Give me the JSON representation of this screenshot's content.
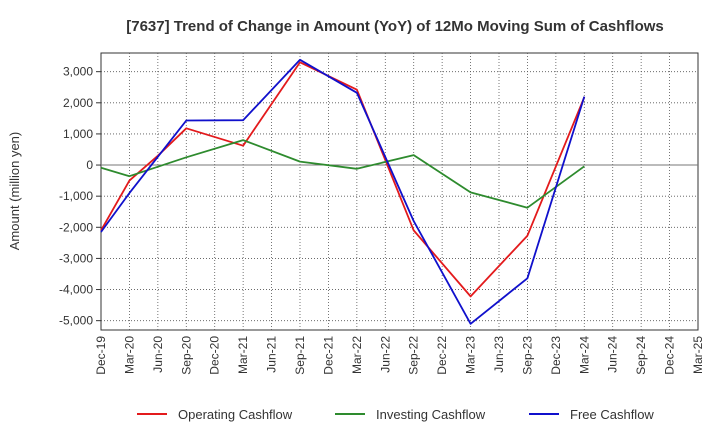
{
  "chart_data": {
    "type": "line",
    "title": "[7637]  Trend of Change in Amount (YoY) of 12Mo Moving Sum of Cashflows",
    "xlabel": "",
    "ylabel": "Amount (million yen)",
    "ylim": [
      -5300,
      3600
    ],
    "yticks": [
      3000,
      2000,
      1000,
      0,
      -1000,
      -2000,
      -3000,
      -4000,
      -5000
    ],
    "ytick_labels": [
      "3,000",
      "2,000",
      "1,000",
      "0",
      "-1,000",
      "-2,000",
      "-3,000",
      "-4,000",
      "-5,000"
    ],
    "categories": [
      "Dec-19",
      "Mar-20",
      "Jun-20",
      "Sep-20",
      "Dec-20",
      "Mar-21",
      "Jun-21",
      "Sep-21",
      "Dec-21",
      "Mar-22",
      "Jun-22",
      "Sep-22",
      "Dec-22",
      "Mar-23",
      "Jun-23",
      "Sep-23",
      "Dec-23",
      "Mar-24",
      "Jun-24",
      "Sep-24",
      "Dec-24",
      "Mar-25"
    ],
    "series": [
      {
        "name": "Operating Cashflow",
        "color": "#e31a1c",
        "values": [
          -2100,
          -500,
          300,
          1180,
          null,
          620,
          null,
          3300,
          null,
          2420,
          null,
          -2100,
          null,
          -4220,
          null,
          -2270,
          null,
          2180,
          null,
          null,
          null,
          null
        ]
      },
      {
        "name": "Investing Cashflow",
        "color": "#2e8b2e",
        "values": [
          -90,
          -360,
          null,
          250,
          null,
          800,
          null,
          110,
          null,
          -120,
          null,
          320,
          null,
          -880,
          null,
          -1370,
          null,
          -40,
          null,
          null,
          null,
          null
        ]
      },
      {
        "name": "Free Cashflow",
        "color": "#1010cc",
        "values": [
          -2150,
          -900,
          null,
          1430,
          null,
          1440,
          null,
          3380,
          null,
          2320,
          null,
          -1800,
          null,
          -5100,
          null,
          -3640,
          null,
          2200,
          null,
          null,
          null,
          null
        ]
      }
    ],
    "grid": true,
    "legend_position": "bottom"
  }
}
